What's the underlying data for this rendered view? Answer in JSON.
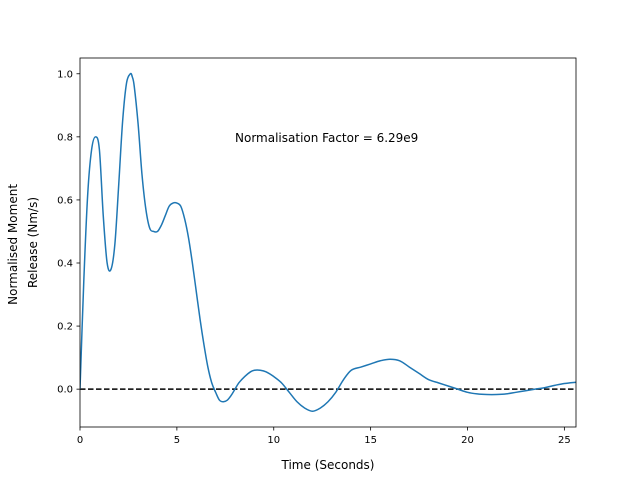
{
  "chart_data": {
    "type": "line",
    "xlabel": "Time (Seconds)",
    "ylabel_lines": [
      "Normalised Moment",
      "Release (Nm/s)"
    ],
    "xlim": [
      0,
      25.6
    ],
    "ylim": [
      -0.12,
      1.05
    ],
    "x_ticks": [
      0,
      5,
      10,
      15,
      20,
      25
    ],
    "y_ticks": [
      0.0,
      0.2,
      0.4,
      0.6,
      0.8,
      1.0
    ],
    "x_tick_labels": [
      "0",
      "5",
      "10",
      "15",
      "20",
      "25"
    ],
    "y_tick_labels": [
      "0.0",
      "0.2",
      "0.4",
      "0.6",
      "0.8",
      "1.0"
    ],
    "annotation": {
      "text": "Normalisation Factor = 6.29e9",
      "x": 8.0,
      "y": 0.8
    },
    "series": [
      {
        "color": "#1f77b4",
        "x": [
          0,
          0.2,
          0.4,
          0.6,
          0.8,
          1.0,
          1.2,
          1.4,
          1.6,
          1.8,
          2.0,
          2.2,
          2.4,
          2.6,
          2.7,
          2.8,
          3.0,
          3.2,
          3.4,
          3.6,
          3.8,
          4.0,
          4.2,
          4.4,
          4.6,
          4.8,
          5.0,
          5.2,
          5.4,
          5.6,
          5.8,
          6.0,
          6.2,
          6.4,
          6.6,
          6.8,
          7.0,
          7.2,
          7.4,
          7.6,
          7.8,
          8.0,
          8.2,
          8.5,
          8.8,
          9.0,
          9.3,
          9.6,
          10.0,
          10.4,
          10.8,
          11.2,
          11.6,
          12.0,
          12.4,
          12.8,
          13.2,
          13.6,
          14.0,
          14.5,
          15.0,
          15.5,
          16.0,
          16.5,
          17.0,
          17.5,
          18.0,
          18.5,
          19.0,
          19.5,
          20.0,
          20.5,
          21.0,
          21.5,
          22.0,
          22.5,
          23.0,
          23.5,
          24.0,
          24.5,
          25.0,
          25.6
        ],
        "y": [
          0.0,
          0.35,
          0.62,
          0.76,
          0.8,
          0.76,
          0.55,
          0.4,
          0.38,
          0.46,
          0.65,
          0.85,
          0.97,
          1.0,
          0.99,
          0.96,
          0.84,
          0.68,
          0.57,
          0.51,
          0.5,
          0.5,
          0.52,
          0.55,
          0.58,
          0.59,
          0.59,
          0.58,
          0.54,
          0.48,
          0.4,
          0.31,
          0.22,
          0.14,
          0.07,
          0.02,
          -0.01,
          -0.035,
          -0.04,
          -0.035,
          -0.02,
          0.0,
          0.02,
          0.04,
          0.055,
          0.06,
          0.06,
          0.055,
          0.04,
          0.02,
          -0.01,
          -0.04,
          -0.06,
          -0.07,
          -0.06,
          -0.04,
          -0.01,
          0.03,
          0.06,
          0.07,
          0.08,
          0.09,
          0.095,
          0.09,
          0.07,
          0.05,
          0.03,
          0.02,
          0.01,
          0.0,
          -0.01,
          -0.015,
          -0.017,
          -0.017,
          -0.015,
          -0.01,
          -0.005,
          0.0,
          0.005,
          0.012,
          0.018,
          0.022
        ]
      }
    ],
    "reference_line": {
      "y": 0.0,
      "style": "dashed",
      "color": "#000000"
    }
  }
}
